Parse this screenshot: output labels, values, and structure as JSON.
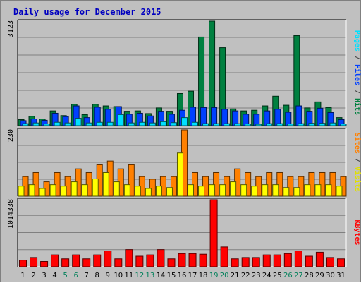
{
  "chart_data": {
    "type": "bar",
    "title": "Daily usage for December 2015",
    "categories": [
      "1",
      "2",
      "3",
      "4",
      "5",
      "6",
      "7",
      "8",
      "9",
      "10",
      "11",
      "12",
      "13",
      "14",
      "15",
      "16",
      "17",
      "18",
      "19",
      "20",
      "21",
      "22",
      "23",
      "24",
      "25",
      "26",
      "27",
      "28",
      "29",
      "30",
      "31"
    ],
    "weekend_days": [
      "5",
      "6",
      "12",
      "13",
      "19",
      "20",
      "26",
      "27"
    ],
    "panels": [
      {
        "name": "pages-files-hits",
        "ymax_label": "3123",
        "ymax": 3123,
        "legend": {
          "pages": "Pages",
          "files": "Files",
          "hits": "Hits",
          "separator": " / "
        },
        "series": [
          {
            "name": "Hits",
            "color": "#008040",
            "values": [
              180,
              280,
              200,
              440,
              300,
              640,
              330,
              640,
              590,
              570,
              430,
              440,
              360,
              530,
              430,
              960,
              1030,
              2650,
              3123,
              2330,
              500,
              440,
              460,
              590,
              880,
              610,
              2690,
              530,
              710,
              540,
              240
            ]
          },
          {
            "name": "Files",
            "color": "#0040ff",
            "values": [
              150,
              200,
              160,
              370,
              270,
              590,
              240,
              550,
              490,
              570,
              340,
              370,
              290,
              430,
              340,
              460,
              550,
              540,
              540,
              490,
              440,
              340,
              340,
              440,
              490,
              400,
              590,
              430,
              520,
              390,
              180
            ]
          },
          {
            "name": "Pages",
            "color": "#00e0ff",
            "values": [
              60,
              80,
              50,
              100,
              80,
              220,
              80,
              100,
              100,
              330,
              80,
              100,
              80,
              120,
              90,
              240,
              100,
              60,
              60,
              60,
              60,
              50,
              40,
              60,
              60,
              50,
              60,
              70,
              70,
              80,
              50
            ]
          }
        ]
      },
      {
        "name": "visits-sites",
        "ymax_label": "230",
        "ymax": 230,
        "legend": {
          "sites": "Sites",
          "visits": "Visits",
          "separator": " / "
        },
        "series": [
          {
            "name": "Visits",
            "color": "#ff8000",
            "values": [
              68,
              82,
              50,
              82,
              68,
              95,
              82,
              109,
              122,
              95,
              109,
              68,
              59,
              68,
              68,
              230,
              82,
              68,
              82,
              68,
              95,
              82,
              68,
              82,
              82,
              68,
              68,
              82,
              82,
              82,
              68
            ]
          },
          {
            "name": "Sites",
            "color": "#ffff00",
            "values": [
              35,
              40,
              27,
              40,
              35,
              50,
              40,
              60,
              82,
              50,
              40,
              35,
              27,
              35,
              30,
              150,
              40,
              35,
              40,
              40,
              50,
              40,
              35,
              40,
              40,
              30,
              30,
              40,
              40,
              40,
              35
            ]
          }
        ]
      },
      {
        "name": "kbytes",
        "ymax_label": "1014338",
        "ymax": 1014338,
        "legend": {
          "kbytes": "KBytes"
        },
        "series": [
          {
            "name": "KBytes",
            "color": "#ff0000",
            "values": [
              100000,
              140000,
              80000,
              180000,
              120000,
              180000,
              120000,
              180000,
              240000,
              120000,
              260000,
              160000,
              180000,
              260000,
              120000,
              200000,
              200000,
              190000,
              1014338,
              300000,
              120000,
              140000,
              140000,
              180000,
              180000,
              200000,
              240000,
              160000,
              220000,
              140000,
              120000
            ]
          }
        ]
      }
    ]
  }
}
